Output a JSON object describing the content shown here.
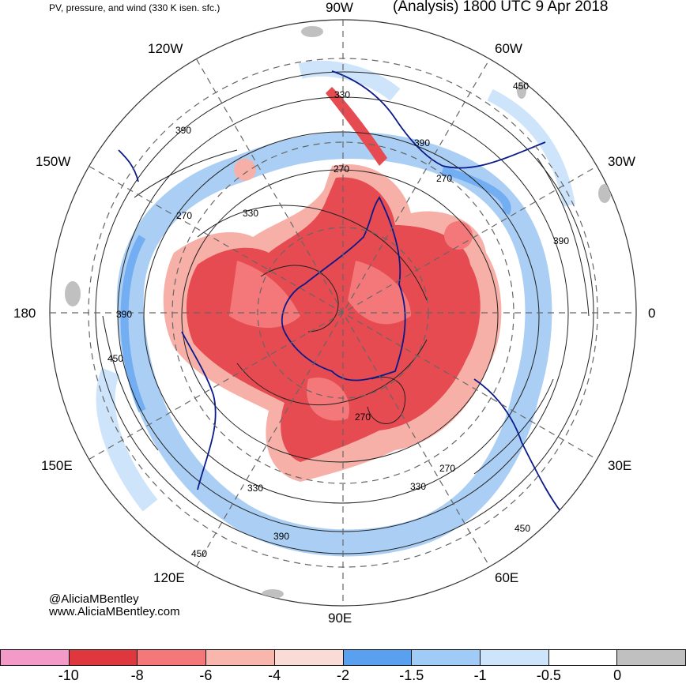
{
  "header": {
    "left_title": "PV, pressure, and wind (330 K isen. sfc.)",
    "right_title": "(Analysis) 1800 UTC 9 Apr 2018"
  },
  "longitude_labels": {
    "lon_90w": "90W",
    "lon_60w": "60W",
    "lon_30w": "30W",
    "lon_0": "0",
    "lon_30e": "30E",
    "lon_60e": "60E",
    "lon_90e": "90E",
    "lon_120e": "120E",
    "lon_150e": "150E",
    "lon_180": "180",
    "lon_150w": "150W",
    "lon_120w": "120W"
  },
  "contour_labels": [
    "330",
    "390",
    "270",
    "330",
    "270",
    "390",
    "450",
    "390",
    "450",
    "270",
    "270",
    "270",
    "330",
    "330",
    "390",
    "390",
    "450",
    "450"
  ],
  "credits": {
    "handle": "@AliciaMBentley",
    "website": "www.AliciaMBentley.com"
  },
  "colorbar": {
    "colors": [
      "#f49ac8",
      "#e0373f",
      "#f4787a",
      "#f9b6ad",
      "#fbdbd6",
      "#5aa0f0",
      "#9fcbf6",
      "#cde4fb",
      "#ffffff",
      "#c0c0c0"
    ],
    "labels": [
      "-10",
      "-8",
      "-6",
      "-4",
      "-2",
      "-1.5",
      "-1",
      "-0.5",
      "0"
    ]
  },
  "map_style": {
    "pv_negative": "#e54b50",
    "pv_light": "#f7b0a8",
    "pv_blue": "#9cc7f2",
    "coastline": "#0a1a8a",
    "contour": "#222222",
    "grid": "#666666"
  }
}
